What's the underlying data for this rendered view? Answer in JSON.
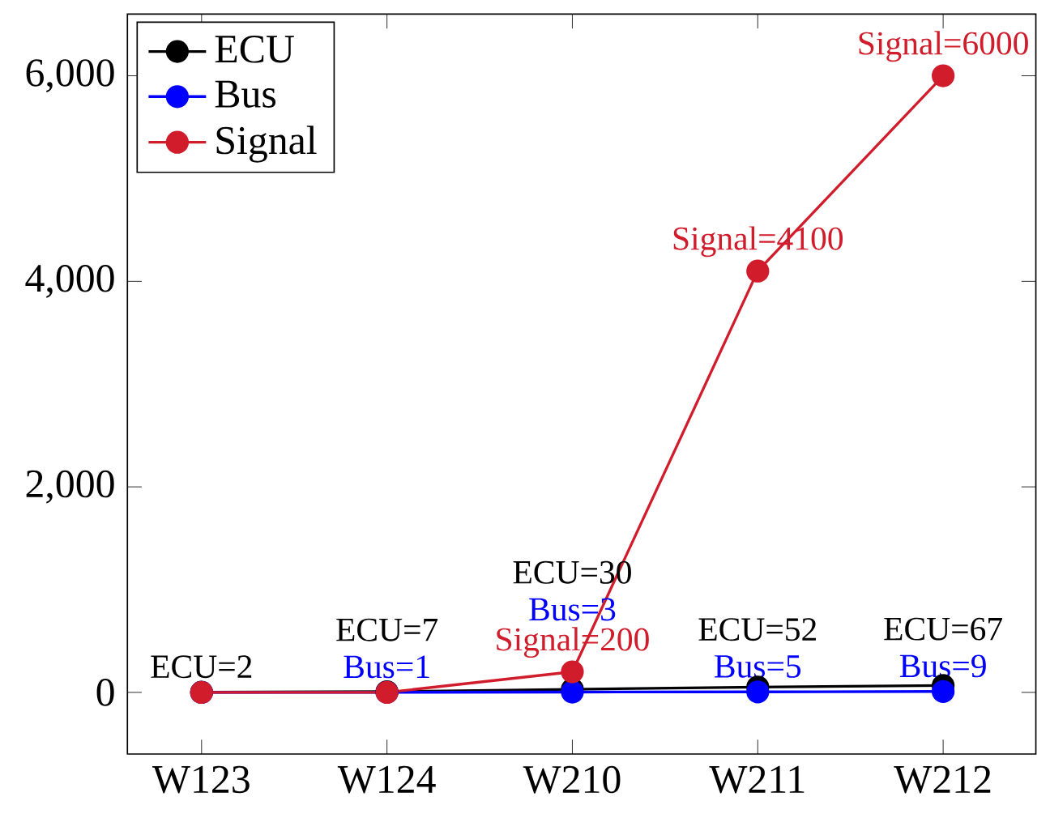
{
  "chart_data": {
    "type": "line",
    "categories": [
      "W123",
      "W124",
      "W210",
      "W211",
      "W212"
    ],
    "series": [
      {
        "name": "ECU",
        "color": "#000000",
        "values": [
          2,
          7,
          30,
          52,
          67
        ],
        "value_labels": [
          "ECU=2",
          "ECU=7",
          "ECU=30",
          "ECU=52",
          "ECU=67"
        ]
      },
      {
        "name": "Bus",
        "color": "#0000ff",
        "values": [
          0,
          1,
          3,
          5,
          9
        ],
        "value_labels": [
          null,
          "Bus=1",
          "Bus=3",
          "Bus=5",
          "Bus=9"
        ]
      },
      {
        "name": "Signal",
        "color": "#d01c2b",
        "values": [
          0,
          0,
          200,
          4100,
          6000
        ],
        "value_labels": [
          null,
          null,
          "Signal=200",
          "Signal=4100",
          "Signal=6000"
        ]
      }
    ],
    "ylim": [
      -600,
      6600
    ],
    "yticks": [
      0,
      {
        "value": 2000,
        "label": "2,000"
      },
      {
        "value": 4000,
        "label": "4,000"
      },
      {
        "value": 6000,
        "label": "6,000"
      }
    ],
    "legend": "top left",
    "marker": "circle",
    "line_style": "solid",
    "grid": false
  }
}
